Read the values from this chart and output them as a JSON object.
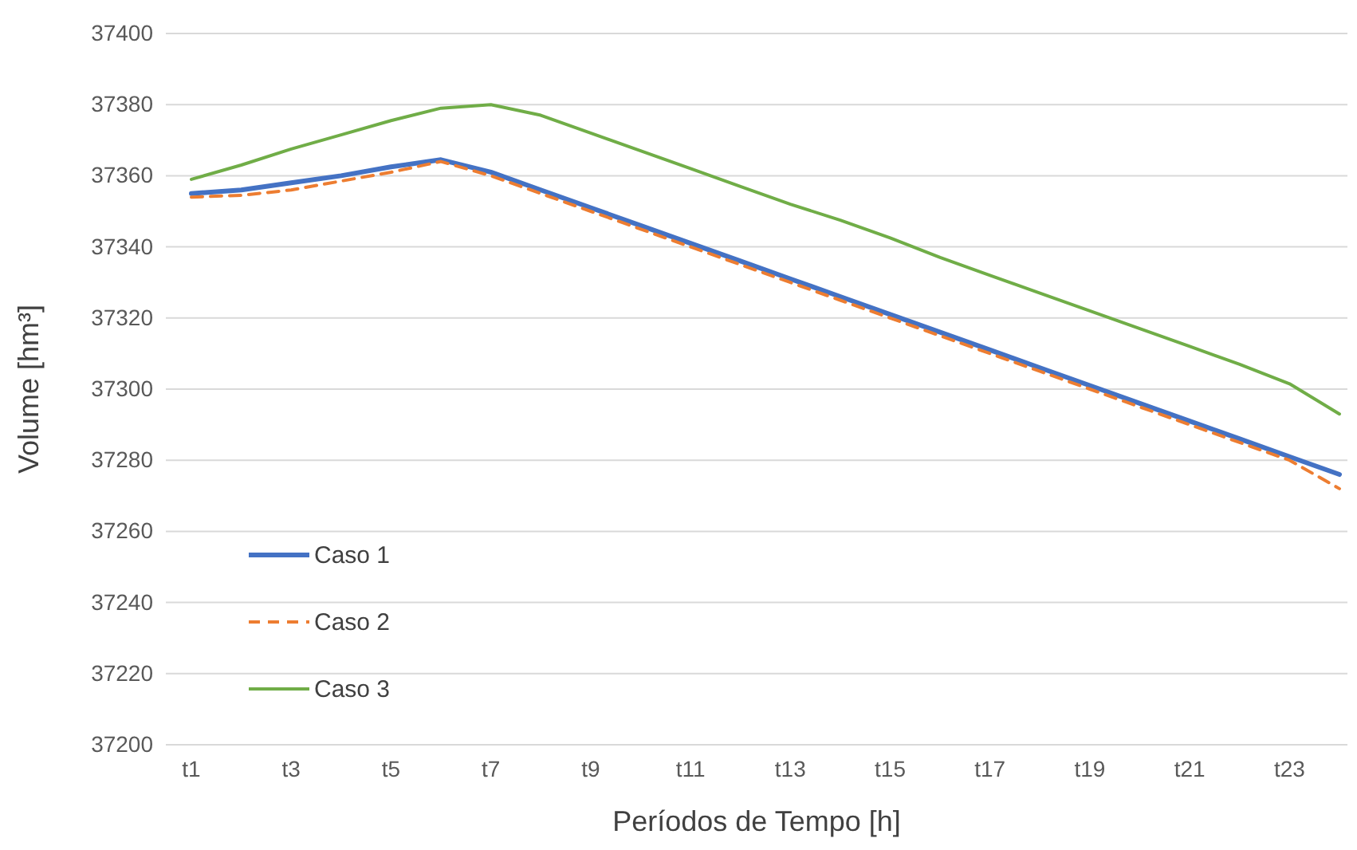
{
  "chart_data": {
    "type": "line",
    "xlabel": "Períodos de Tempo [h]",
    "ylabel": "Volume [hm³]",
    "categories": [
      "t1",
      null,
      "t3",
      null,
      "t5",
      null,
      "t7",
      null,
      "t9",
      null,
      "t11",
      null,
      "t13",
      null,
      "t15",
      null,
      "t17",
      null,
      "t19",
      null,
      "t21",
      null,
      "t23",
      null
    ],
    "series": [
      {
        "name": "Caso 1",
        "color": "#4472c4",
        "line_style": "solid",
        "values": [
          37355,
          37356,
          37358,
          37360,
          37362.5,
          37364.5,
          37361,
          37356,
          37351,
          37346,
          37341,
          37336,
          37331,
          37326,
          37321,
          37316,
          37311,
          37306,
          37301,
          37296,
          37291,
          37286,
          37281,
          37276
        ]
      },
      {
        "name": "Caso 2",
        "color": "#ed7d31",
        "line_style": "dashed",
        "values": [
          37354,
          37354.5,
          37356,
          37358.5,
          37361,
          37364,
          37360,
          37355,
          37350,
          37345,
          37340,
          37335,
          37330,
          37325,
          37320,
          37315,
          37310,
          37305,
          37300,
          37295,
          37290,
          37285,
          37280,
          37272
        ]
      },
      {
        "name": "Caso 3",
        "color": "#70ad47",
        "line_style": "solid",
        "values": [
          37359,
          37363,
          37367.5,
          37371.5,
          37375.5,
          37379,
          37380,
          37377,
          37372,
          37367,
          37362,
          37357,
          37352,
          37347.5,
          37342.5,
          37337,
          37332,
          37327,
          37322,
          37317,
          37312,
          37307,
          37301.5,
          37293
        ]
      }
    ],
    "ylim": [
      37200,
      37400
    ],
    "yticks": [
      37200,
      37220,
      37240,
      37260,
      37280,
      37300,
      37320,
      37340,
      37360,
      37380,
      37400
    ],
    "grid": "y",
    "legend": "bottom left",
    "marker": "none"
  }
}
